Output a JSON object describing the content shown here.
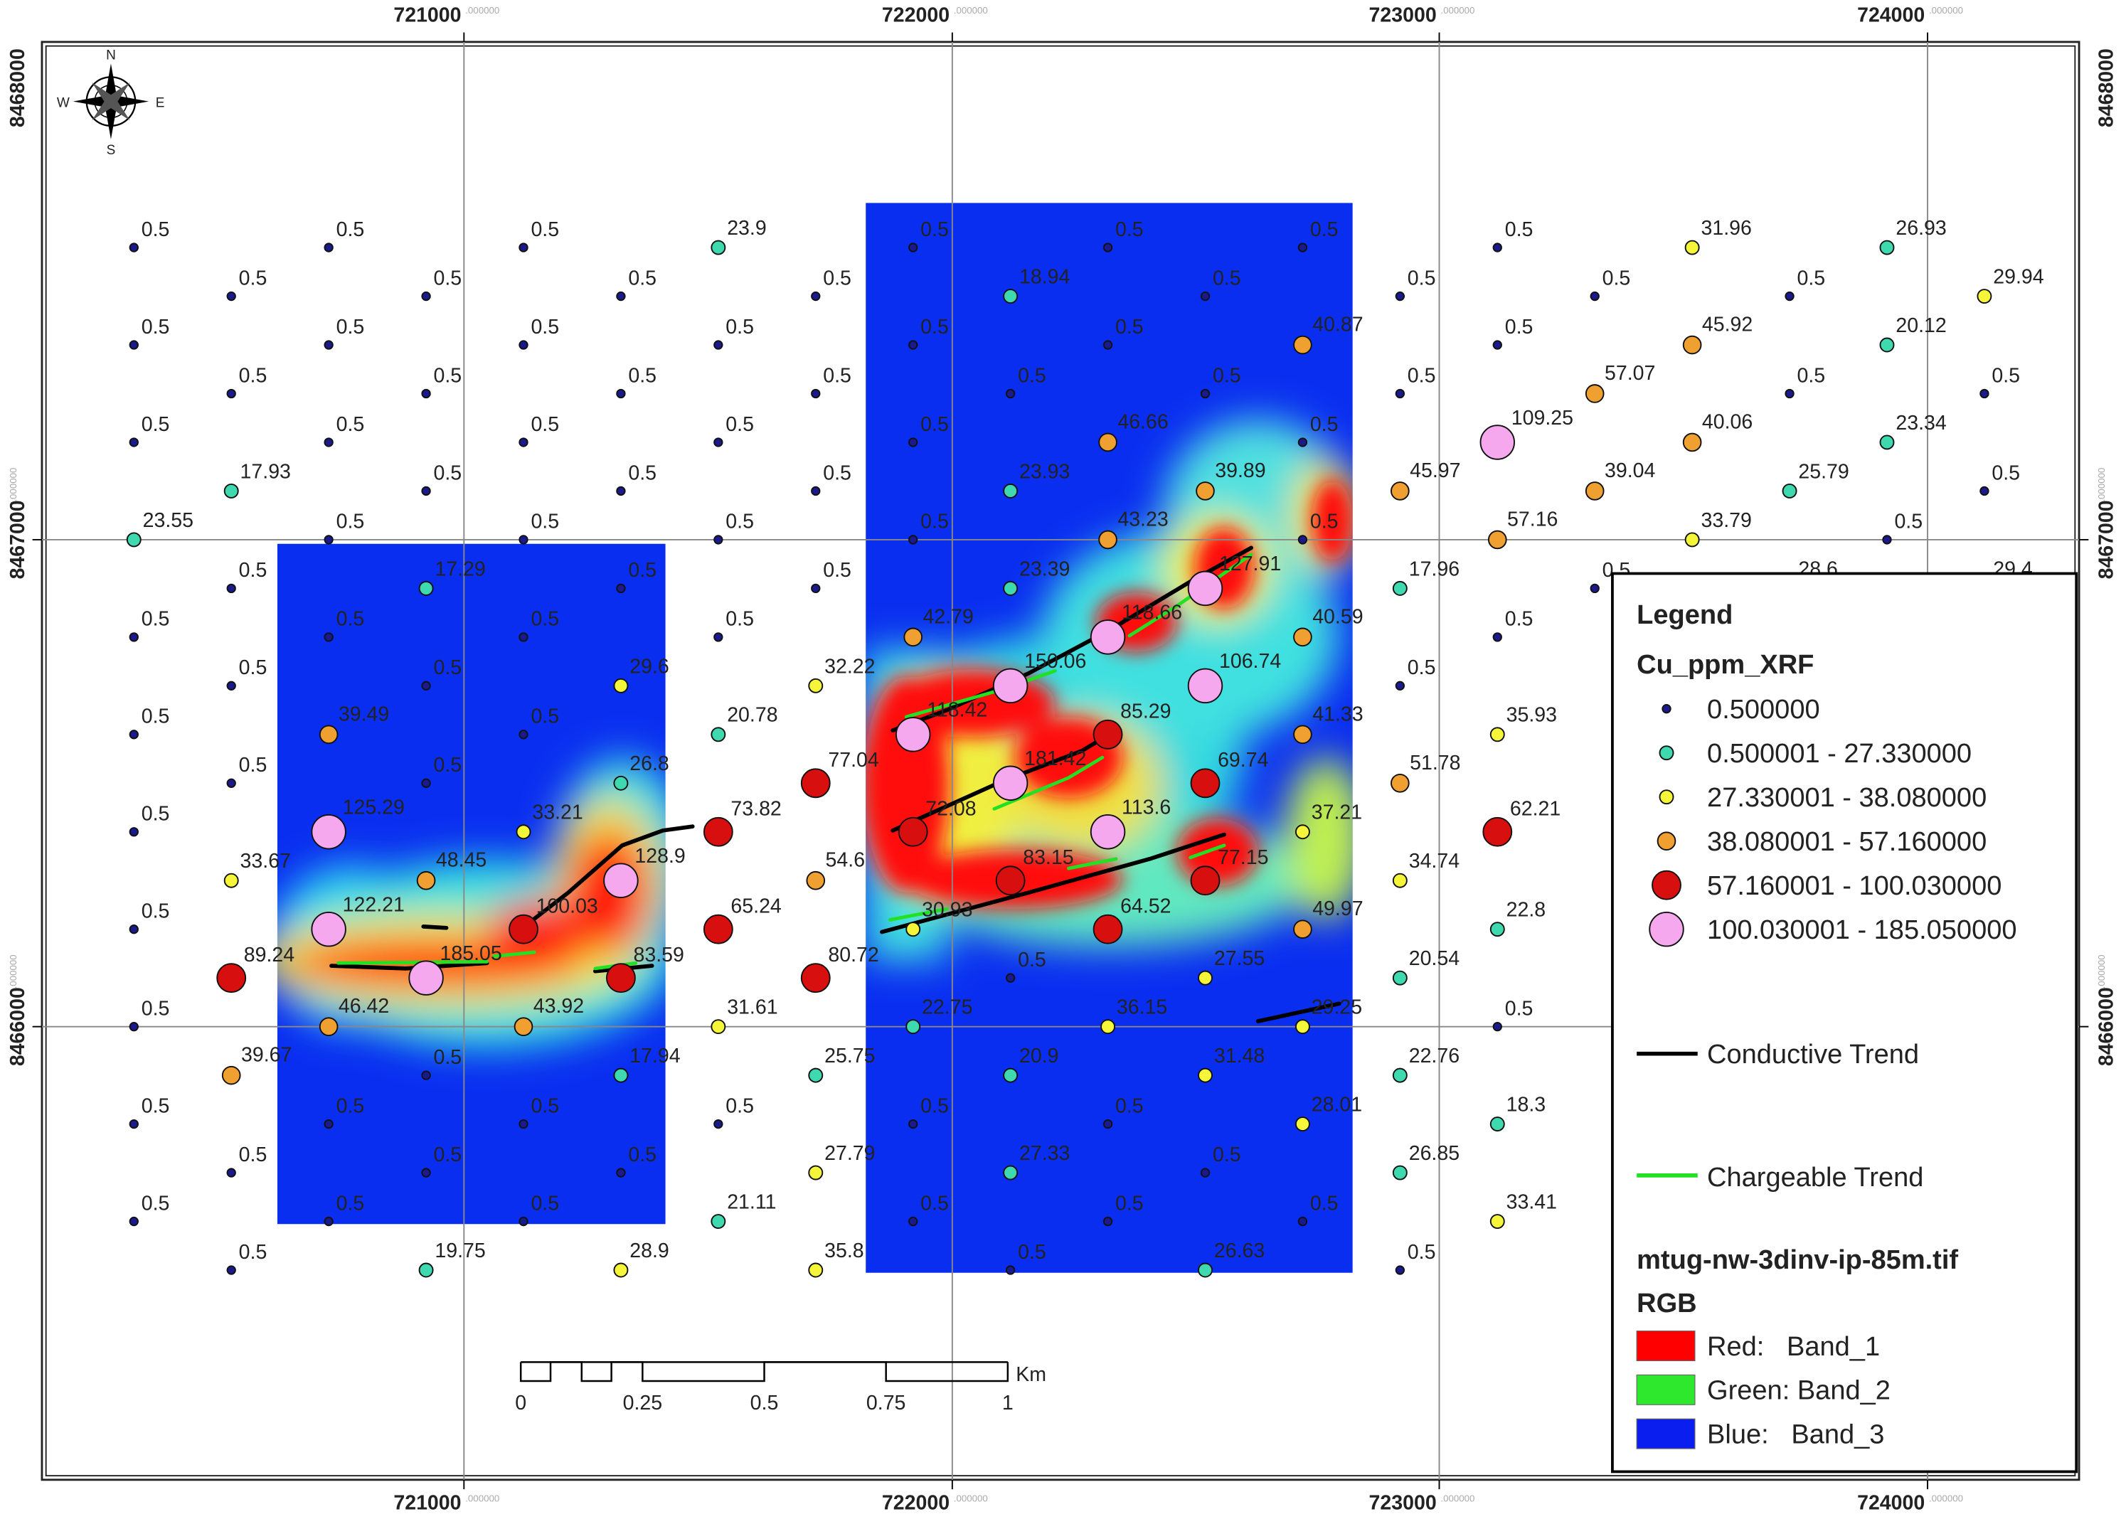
{
  "grid": {
    "eastings": [
      "721000",
      "722000",
      "723000",
      "724000"
    ],
    "northings": [
      "8468000",
      "8467000",
      "8466000"
    ],
    "decimal": ".000000"
  },
  "north_arrow": {
    "n": "N",
    "s": "S",
    "e": "E",
    "w": "W"
  },
  "scale_bar": {
    "ticks": [
      "0",
      "0.25",
      "0.5",
      "0.75",
      "1"
    ],
    "unit": "Km"
  },
  "samples": [
    [
      "0.5",
      "0.5",
      "0.5",
      "23.55",
      "0.5",
      "0.5",
      "0.5",
      "0.5",
      "0.5",
      "0.5",
      "0.5"
    ],
    [
      "0.5",
      "0.5",
      "17.93",
      "0.5",
      "0.5",
      "0.5",
      "33.67",
      "89.24",
      "39.67",
      "0.5",
      "0.5"
    ],
    [
      "0.5",
      "0.5",
      "0.5",
      "0.5",
      "0.5",
      "39.49",
      "125.29",
      "122.21",
      "46.42",
      "0.5",
      "0.5"
    ],
    [
      "0.5",
      "0.5",
      "0.5",
      "17.29",
      "0.5",
      "0.5",
      "48.45",
      "185.05",
      "0.5",
      "0.5",
      "19.75"
    ],
    [
      "0.5",
      "0.5",
      "0.5",
      "0.5",
      "0.5",
      "0.5",
      "33.21",
      "100.03",
      "43.92",
      "0.5",
      "0.5"
    ],
    [
      "0.5",
      "0.5",
      "0.5",
      "0.5",
      "29.6",
      "26.8",
      "128.9",
      "83.59",
      "17.94",
      "0.5",
      "28.9"
    ],
    [
      "23.9",
      "0.5",
      "0.5",
      "0.5",
      "0.5",
      "20.78",
      "73.82",
      "65.24",
      "31.61",
      "0.5",
      "21.11"
    ],
    [
      "0.5",
      "0.5",
      "0.5",
      "0.5",
      "32.22",
      "77.04",
      "54.6",
      "80.72",
      "25.75",
      "27.79",
      "35.8"
    ],
    [
      "0.5",
      "0.5",
      "0.5",
      "0.5",
      "42.79",
      "118.42",
      "72.08",
      "30.93",
      "22.75",
      "0.5",
      "0.5"
    ],
    [
      "18.94",
      "0.5",
      "23.93",
      "23.39",
      "150.06",
      "181.42",
      "83.15",
      "0.5",
      "20.9",
      "27.33",
      "0.5"
    ],
    [
      "0.5",
      "0.5",
      "46.66",
      "43.23",
      "118.66",
      "85.29",
      "113.6",
      "64.52",
      "36.15",
      "0.5",
      "0.5"
    ],
    [
      "0.5",
      "0.5",
      "39.89",
      "127.91",
      "106.74",
      "69.74",
      "77.15",
      "27.55",
      "31.48",
      "0.5",
      "26.63"
    ],
    [
      "0.5",
      "40.87",
      "0.5",
      "0.5",
      "40.59",
      "41.33",
      "37.21",
      "49.97",
      "29.25",
      "28.01",
      "0.5"
    ],
    [
      "0.5",
      "0.5",
      "45.97",
      "17.96",
      "0.5",
      "51.78",
      "34.74",
      "20.54",
      "22.76",
      "26.85",
      "0.5"
    ],
    [
      "0.5",
      "0.5",
      "109.25",
      "57.16",
      "0.5",
      "35.93",
      "62.21",
      "22.8",
      "0.5",
      "18.3",
      "33.41"
    ],
    [
      "0.5",
      "57.07",
      "39.04",
      "0.5",
      null,
      null,
      null,
      null,
      null,
      null,
      null
    ],
    [
      "31.96",
      "45.92",
      "40.06",
      "33.79",
      null,
      null,
      null,
      null,
      null,
      null,
      null
    ],
    [
      "0.5",
      "0.5",
      "25.79",
      "28.6",
      null,
      null,
      null,
      null,
      null,
      null,
      null
    ],
    [
      "26.93",
      "20.12",
      "23.34",
      "0.5",
      null,
      null,
      null,
      null,
      null,
      null,
      null
    ],
    [
      "29.94",
      "0.5",
      "0.5",
      "29.4",
      null,
      null,
      null,
      null,
      null,
      null,
      null
    ]
  ],
  "legend": {
    "title": "Legend",
    "layer": "Cu_ppm_XRF",
    "classes": [
      {
        "label": "0.500000",
        "color": "#1a1a8c"
      },
      {
        "label": "0.500001 - 27.330000",
        "color": "#3fd9b0"
      },
      {
        "label": "27.330001 - 38.080000",
        "color": "#f5f53a"
      },
      {
        "label": "38.080001 - 57.160000",
        "color": "#f0a030"
      },
      {
        "label": "57.160001 - 100.030000",
        "color": "#d80f0f"
      },
      {
        "label": "100.030001 - 185.050000",
        "color": "#f5a8ee"
      }
    ],
    "conductive": "Conductive Trend",
    "chargeable": "Chargeable Trend",
    "raster": "mtug-nw-3dinv-ip-85m.tif",
    "rgb": "RGB",
    "bands": [
      {
        "label": "Red:   Band_1",
        "color": "#ff0000"
      },
      {
        "label": "Green: Band_2",
        "color": "#2ee82e"
      },
      {
        "label": "Blue:   Band_3",
        "color": "#0a1ef0"
      }
    ]
  }
}
